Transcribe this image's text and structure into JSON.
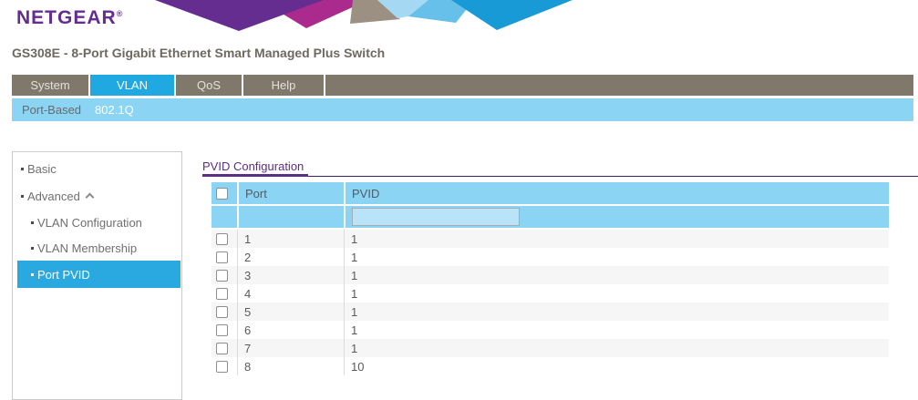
{
  "brand": {
    "name": "NETGEAR",
    "registered_mark": "®"
  },
  "device_title": "GS308E - 8-Port Gigabit Ethernet Smart Managed Plus Switch",
  "nav_tabs": [
    {
      "label": "System",
      "active": false
    },
    {
      "label": "VLAN",
      "active": true
    },
    {
      "label": "QoS",
      "active": false
    },
    {
      "label": "Help",
      "active": false
    }
  ],
  "subnav_items": [
    {
      "label": "Port-Based",
      "active": false
    },
    {
      "label": "802.1Q",
      "active": true
    }
  ],
  "sidebar_items": [
    {
      "label": "Basic",
      "level": 1,
      "active": false,
      "expander": null
    },
    {
      "label": "Advanced",
      "level": 1,
      "active": false,
      "expander": "caret-up"
    },
    {
      "label": "VLAN Configuration",
      "level": 2,
      "active": false,
      "expander": null
    },
    {
      "label": "VLAN Membership",
      "level": 2,
      "active": false,
      "expander": null
    },
    {
      "label": "Port PVID",
      "level": 2,
      "active": true,
      "expander": null
    }
  ],
  "section": {
    "title": "PVID Configuration",
    "table": {
      "columns": [
        "Port",
        "PVID"
      ],
      "select_all_checked": false,
      "pvid_filter_value": "",
      "rows": [
        {
          "port": "1",
          "pvid": "1",
          "checked": false
        },
        {
          "port": "2",
          "pvid": "1",
          "checked": false
        },
        {
          "port": "3",
          "pvid": "1",
          "checked": false
        },
        {
          "port": "4",
          "pvid": "1",
          "checked": false
        },
        {
          "port": "5",
          "pvid": "1",
          "checked": false
        },
        {
          "port": "6",
          "pvid": "1",
          "checked": false
        },
        {
          "port": "7",
          "pvid": "1",
          "checked": false
        },
        {
          "port": "8",
          "pvid": "10",
          "checked": false
        }
      ]
    }
  },
  "colors": {
    "brand_purple": "#662D91",
    "section_purple": "#5C2D83",
    "nav_gray": "#80786B",
    "active_blue": "#20A8E0",
    "sidebar_highlight_blue": "#29A9E0",
    "light_blue": "#8BD4F4",
    "banner_palette": [
      "#662D91",
      "#AB2A8D",
      "#9C9082",
      "#A5D8F2",
      "#66C0EA",
      "#189AD7"
    ]
  }
}
